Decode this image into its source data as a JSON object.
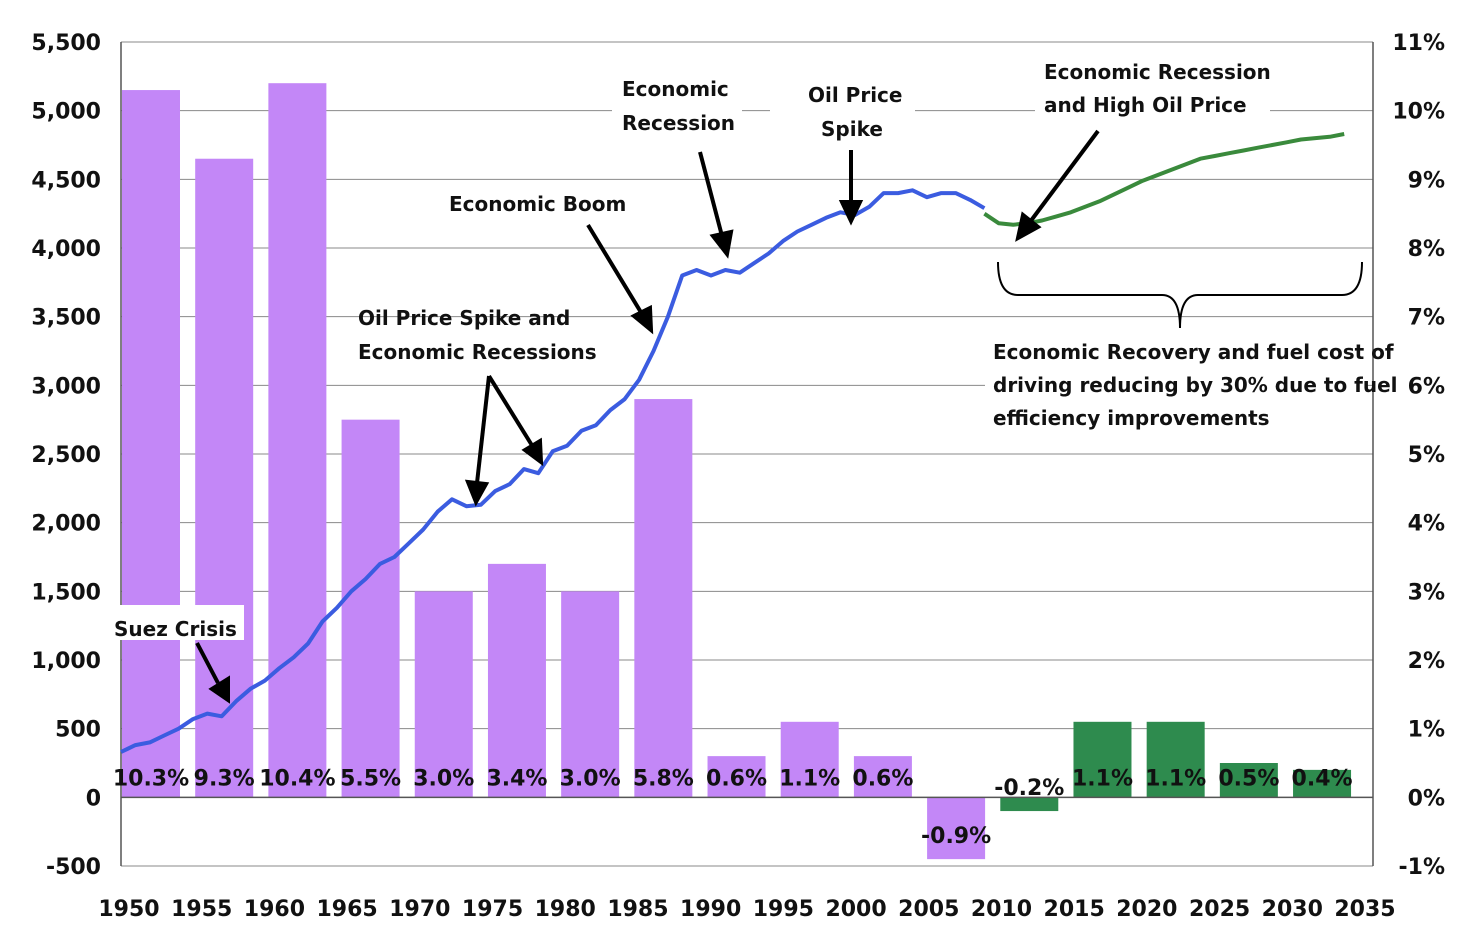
{
  "chart_data": {
    "type": "bar+line",
    "x_ticks": [
      "1950",
      "1955",
      "1960",
      "1965",
      "1970",
      "1975",
      "1980",
      "1985",
      "1990",
      "1995",
      "2000",
      "2005",
      "2010",
      "2015",
      "2020",
      "2025",
      "2030",
      "2035"
    ],
    "y_left": {
      "min": -500,
      "max": 5500,
      "ticks": [
        "-500",
        "0",
        "500",
        "1,000",
        "1,500",
        "2,000",
        "2,500",
        "3,000",
        "3,500",
        "4,000",
        "4,500",
        "5,000",
        "5,500"
      ]
    },
    "y_right": {
      "min": -1,
      "max": 11,
      "ticks": [
        "-1%",
        "0%",
        "1%",
        "2%",
        "3%",
        "4%",
        "5%",
        "6%",
        "7%",
        "8%",
        "9%",
        "10%",
        "11%"
      ]
    },
    "bars": {
      "categories": [
        "1950",
        "1955",
        "1960",
        "1965",
        "1970",
        "1975",
        "1980",
        "1985",
        "1990",
        "1995",
        "2000",
        "2005",
        "2010",
        "2015",
        "2020",
        "2025",
        "2030"
      ],
      "values": [
        10.3,
        9.3,
        10.4,
        5.5,
        3.0,
        3.4,
        3.0,
        5.8,
        0.6,
        1.1,
        0.6,
        -0.9,
        -0.2,
        1.1,
        1.1,
        0.5,
        0.4
      ],
      "labels": [
        "10.3%",
        "9.3%",
        "10.4%",
        "5.5%",
        "3.0%",
        "3.4%",
        "3.0%",
        "5.8%",
        "0.6%",
        "1.1%",
        "0.6%",
        "-0.9%",
        "-0.2%",
        "1.1%",
        "1.1%",
        "0.5%",
        "0.4%"
      ],
      "historical_color": "#c387f7",
      "projected_color": "#2e8b4e",
      "projected_from": "2010"
    },
    "series": [
      {
        "name": "historical",
        "color": "#3b5ce0",
        "x": [
          1950,
          1951,
          1952,
          1953,
          1954,
          1955,
          1956,
          1957,
          1958,
          1959,
          1960,
          1961,
          1962,
          1963,
          1964,
          1965,
          1966,
          1967,
          1968,
          1969,
          1970,
          1971,
          1972,
          1973,
          1974,
          1975,
          1976,
          1977,
          1978,
          1979,
          1980,
          1981,
          1982,
          1983,
          1984,
          1985,
          1986,
          1987,
          1988,
          1989,
          1990,
          1991,
          1992,
          1993,
          1994,
          1995,
          1996,
          1997,
          1998,
          1999,
          2000,
          2001,
          2002,
          2003,
          2004,
          2005,
          2006,
          2007,
          2008,
          2009,
          2010
        ],
        "y": [
          330,
          380,
          400,
          450,
          500,
          570,
          610,
          590,
          700,
          790,
          850,
          940,
          1020,
          1120,
          1280,
          1380,
          1500,
          1590,
          1700,
          1750,
          1850,
          1950,
          2080,
          2170,
          2120,
          2130,
          2230,
          2280,
          2390,
          2360,
          2520,
          2560,
          2670,
          2710,
          2820,
          2900,
          3040,
          3250,
          3500,
          3800,
          3840,
          3800,
          3840,
          3820,
          3890,
          3960,
          4050,
          4120,
          4170,
          4220,
          4260,
          4240,
          4300,
          4400,
          4400,
          4420,
          4370,
          4400,
          4400,
          4350,
          4290
        ]
      },
      {
        "name": "projected",
        "color": "#3a8a3c",
        "x": [
          2010,
          2011,
          2012,
          2013,
          2014,
          2015,
          2016,
          2017,
          2018,
          2019,
          2020,
          2021,
          2022,
          2023,
          2024,
          2025,
          2026,
          2027,
          2028,
          2029,
          2030,
          2031,
          2032,
          2033,
          2034,
          2035
        ],
        "y": [
          4250,
          4180,
          4170,
          4180,
          4200,
          4230,
          4260,
          4300,
          4340,
          4390,
          4440,
          4490,
          4530,
          4570,
          4610,
          4650,
          4670,
          4690,
          4710,
          4730,
          4750,
          4770,
          4790,
          4800,
          4810,
          4830
        ]
      }
    ],
    "annotations": {
      "suez": "Suez Crisis",
      "oil_spike_1": "Oil Price Spike and",
      "oil_spike_2": "Economic Recessions",
      "boom": "Economic Boom",
      "recession_1": "Economic",
      "recession_2": "Recession",
      "spike_1": "Oil Price",
      "spike_2": "Spike",
      "high_oil_1": "Economic Recession",
      "high_oil_2": "and High Oil Price",
      "recovery_1": "Economic Recovery and fuel cost of",
      "recovery_2": "driving reducing by 30% due to fuel",
      "recovery_3": "efficiency improvements"
    }
  }
}
